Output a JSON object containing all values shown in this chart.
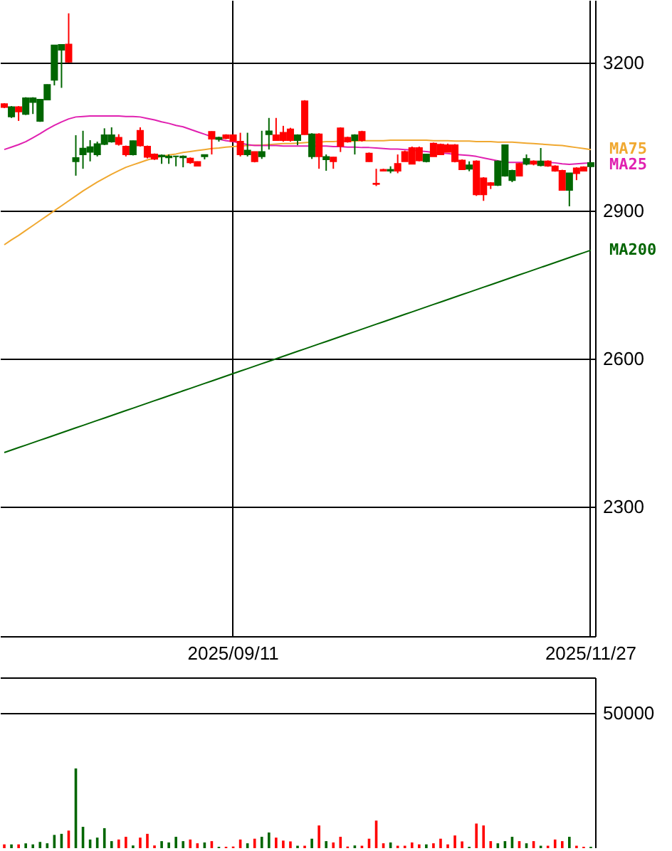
{
  "chart_data": [
    {
      "type": "candlestick",
      "categories": [
        null,
        null,
        null,
        null,
        null,
        null,
        null,
        null,
        null,
        null,
        null,
        null,
        null,
        null,
        null,
        null,
        null,
        null,
        null,
        null,
        null,
        null,
        null,
        null,
        null,
        null,
        null,
        null,
        null,
        null,
        null,
        null,
        "2025/09/11",
        null,
        null,
        null,
        null,
        null,
        null,
        null,
        null,
        null,
        null,
        null,
        null,
        null,
        null,
        null,
        null,
        null,
        null,
        null,
        null,
        null,
        null,
        null,
        null,
        null,
        null,
        null,
        null,
        null,
        null,
        null,
        null,
        null,
        null,
        null,
        null,
        null,
        null,
        null,
        null,
        null,
        null,
        null,
        null,
        null,
        null,
        null,
        null,
        null,
        "2025/11/27"
      ],
      "ohlc": [
        [
          3116,
          3118,
          3108,
          3110
        ],
        [
          3091,
          3112,
          3088,
          3110
        ],
        [
          3110,
          3112,
          3082,
          3101
        ],
        [
          3096,
          3130,
          3094,
          3128
        ],
        [
          3120,
          3130,
          3096,
          3128
        ],
        [
          3082,
          3126,
          3080,
          3125
        ],
        [
          3125,
          3156,
          3124,
          3155
        ],
        [
          3165,
          3236,
          3154,
          3235
        ],
        [
          3226,
          3237,
          3149,
          3236
        ],
        [
          3237,
          3300,
          3200,
          3202
        ],
        [
          3000,
          3053,
          2971,
          3007
        ],
        [
          3014,
          3062,
          2985,
          3026
        ],
        [
          3019,
          3043,
          3000,
          3029
        ],
        [
          3014,
          3040,
          3010,
          3035
        ],
        [
          3035,
          3067,
          3033,
          3053
        ],
        [
          3040,
          3069,
          3038,
          3053
        ],
        [
          3048,
          3055,
          3032,
          3035
        ],
        [
          3030,
          3032,
          3010,
          3014
        ],
        [
          3014,
          3042,
          3012,
          3041
        ],
        [
          3062,
          3069,
          3030,
          3032
        ],
        [
          3030,
          3032,
          3006,
          3009
        ],
        [
          3014,
          3016,
          3003,
          3005
        ],
        [
          3010,
          3014,
          2995,
          3012
        ],
        [
          3008,
          3014,
          2995,
          3010
        ],
        [
          3010,
          3010,
          2990,
          3010
        ],
        [
          3008,
          3012,
          2988,
          3010
        ],
        [
          3006,
          3008,
          2995,
          2998
        ],
        [
          2999,
          3000,
          2990,
          2991
        ],
        [
          3010,
          3014,
          3004,
          3013
        ],
        [
          3060,
          3061,
          3014,
          3046
        ],
        [
          3045,
          3050,
          3040,
          3048
        ],
        [
          3053,
          3055,
          3045,
          3047
        ],
        [
          3053,
          3055,
          3040,
          3041
        ],
        [
          3040,
          3058,
          3010,
          3014
        ],
        [
          3014,
          3058,
          3010,
          3022
        ],
        [
          3019,
          3020,
          2998,
          3000
        ],
        [
          3010,
          3062,
          3005,
          3019
        ],
        [
          3055,
          3088,
          3024,
          3061
        ],
        [
          3053,
          3088,
          3043,
          3043
        ],
        [
          3058,
          3072,
          3040,
          3043
        ],
        [
          3065,
          3068,
          3040,
          3043
        ],
        [
          3043,
          3055,
          3033,
          3053
        ],
        [
          3122,
          3124,
          3054,
          3055
        ],
        [
          3010,
          3057,
          3005,
          3055
        ],
        [
          3055,
          3057,
          2985,
          3010
        ],
        [
          3004,
          3014,
          2981,
          3009
        ],
        [
          3008,
          3009,
          2985,
          3000
        ],
        [
          3067,
          3069,
          3019,
          3031
        ],
        [
          3048,
          3050,
          3038,
          3040
        ],
        [
          3043,
          3055,
          3014,
          3053
        ],
        [
          3060,
          3062,
          3040,
          3043
        ],
        [
          3016,
          3018,
          2999,
          3000
        ],
        [
          2955,
          2985,
          2950,
          2954
        ],
        [
          2983,
          2985,
          2980,
          2981
        ],
        [
          2981,
          2990,
          2976,
          2983
        ],
        [
          2995,
          3014,
          2976,
          2981
        ],
        [
          3019,
          3022,
          3000,
          3000
        ],
        [
          3027,
          3030,
          2995,
          2995
        ],
        [
          3027,
          3030,
          3000,
          3002
        ],
        [
          3000,
          3015,
          2998,
          3014
        ],
        [
          3036,
          3038,
          3010,
          3010
        ],
        [
          3034,
          3036,
          3014,
          3014
        ],
        [
          3033,
          3036,
          3019,
          3019
        ],
        [
          3033,
          3035,
          2998,
          3000
        ],
        [
          3002,
          3004,
          2983,
          2984
        ],
        [
          2985,
          3000,
          2980,
          2992
        ],
        [
          3000,
          3002,
          2930,
          2933
        ],
        [
          2966,
          2968,
          2920,
          2933
        ],
        [
          2956,
          2958,
          2944,
          2952
        ],
        [
          2952,
          3002,
          2950,
          3000
        ],
        [
          2971,
          3034,
          2969,
          3033
        ],
        [
          2962,
          2983,
          2958,
          2981
        ],
        [
          2995,
          2997,
          2971,
          2971
        ],
        [
          2995,
          3014,
          2992,
          3005
        ],
        [
          3000,
          3002,
          2992,
          2995
        ],
        [
          2992,
          3027,
          2990,
          3000
        ],
        [
          3000,
          3002,
          2989,
          2991
        ],
        [
          2990,
          2992,
          2979,
          2981
        ],
        [
          2981,
          2983,
          2942,
          2942
        ],
        [
          2942,
          2976,
          2909,
          2976
        ],
        [
          2986,
          2988,
          2962,
          2976
        ],
        [
          2988,
          2990,
          2980,
          2981
        ],
        [
          2990,
          2997,
          2988,
          2997
        ]
      ],
      "colors": [
        "#ff0000",
        "#006600",
        "#ff0000",
        "#006600",
        "#006600",
        "#006600",
        "#006600",
        "#006600",
        "#006600",
        "#ff0000",
        "#006600",
        "#006600",
        "#006600",
        "#006600",
        "#006600",
        "#006600",
        "#ff0000",
        "#ff0000",
        "#006600",
        "#ff0000",
        "#ff0000",
        "#ff0000",
        "#006600",
        "#006600",
        "#006600",
        "#006600",
        "#ff0000",
        "#ff0000",
        "#006600",
        "#ff0000",
        "#006600",
        "#ff0000",
        "#ff0000",
        "#ff0000",
        "#006600",
        "#ff0000",
        "#006600",
        "#006600",
        "#ff0000",
        "#ff0000",
        "#ff0000",
        "#006600",
        "#ff0000",
        "#006600",
        "#ff0000",
        "#006600",
        "#ff0000",
        "#ff0000",
        "#ff0000",
        "#006600",
        "#ff0000",
        "#ff0000",
        "#ff0000",
        "#ff0000",
        "#006600",
        "#ff0000",
        "#ff0000",
        "#ff0000",
        "#ff0000",
        "#006600",
        "#ff0000",
        "#ff0000",
        "#ff0000",
        "#ff0000",
        "#ff0000",
        "#006600",
        "#ff0000",
        "#ff0000",
        "#ff0000",
        "#006600",
        "#006600",
        "#006600",
        "#ff0000",
        "#006600",
        "#ff0000",
        "#006600",
        "#ff0000",
        "#ff0000",
        "#ff0000",
        "#006600",
        "#ff0000",
        "#ff0000",
        "#006600"
      ],
      "series": [
        {
          "name": "MA75",
          "type": "line",
          "color": "#f0a830",
          "values": [
            2831,
            2841,
            2850,
            2860,
            2870,
            2880,
            2890,
            2900,
            2910,
            2920,
            2930,
            2940,
            2949,
            2958,
            2966,
            2974,
            2981,
            2988,
            2993,
            2998,
            3003,
            3007,
            3010,
            3013,
            3015,
            3018,
            3020,
            3022,
            3024,
            3026,
            3027,
            3029,
            3030,
            3031,
            3032,
            3033,
            3033,
            3034,
            3035,
            3036,
            3036,
            3037,
            3038,
            3039,
            3039,
            3040,
            3040,
            3041,
            3041,
            3041,
            3042,
            3042,
            3042,
            3042,
            3043,
            3043,
            3043,
            3043,
            3043,
            3043,
            3042,
            3042,
            3042,
            3041,
            3041,
            3041,
            3040,
            3040,
            3040,
            3039,
            3039,
            3039,
            3038,
            3037,
            3036,
            3035,
            3034,
            3033,
            3032,
            3030,
            3028,
            3026,
            3024
          ]
        },
        {
          "name": "MA25",
          "type": "line",
          "color": "#e020b0",
          "values": [
            3024,
            3029,
            3034,
            3040,
            3048,
            3056,
            3065,
            3073,
            3080,
            3086,
            3090,
            3091,
            3092,
            3092,
            3092,
            3092,
            3092,
            3091,
            3091,
            3090,
            3087,
            3084,
            3080,
            3077,
            3073,
            3070,
            3065,
            3060,
            3055,
            3050,
            3045,
            3042,
            3040,
            3037,
            3034,
            3032,
            3032,
            3032,
            3032,
            3031,
            3031,
            3031,
            3031,
            3031,
            3031,
            3031,
            3030,
            3030,
            3029,
            3029,
            3028,
            3028,
            3027,
            3026,
            3025,
            3025,
            3024,
            3023,
            3021,
            3020,
            3018,
            3017,
            3016,
            3014,
            3013,
            3012,
            3010,
            3007,
            3004,
            3001,
            2998,
            2998,
            2998,
            2998,
            2998,
            2998,
            2998,
            2997,
            2995,
            2994,
            2995,
            2996,
            2997
          ]
        },
        {
          "name": "MA200",
          "type": "line",
          "color": "#006400",
          "values": [
            2410,
            2415,
            2420,
            2425,
            2430,
            2435,
            2440,
            2445,
            2450,
            2455,
            2460,
            2465,
            2470,
            2475,
            2480,
            2485,
            2490,
            2495,
            2500,
            2505,
            2510,
            2515,
            2520,
            2525,
            2530,
            2535,
            2540,
            2545,
            2550,
            2555,
            2560,
            2565,
            2570,
            2575,
            2580,
            2585,
            2590,
            2595,
            2600,
            2605,
            2610,
            2615,
            2620,
            2625,
            2630,
            2635,
            2640,
            2645,
            2650,
            2655,
            2660,
            2665,
            2670,
            2675,
            2680,
            2685,
            2690,
            2695,
            2700,
            2705,
            2710,
            2715,
            2720,
            2725,
            2730,
            2735,
            2740,
            2745,
            2750,
            2755,
            2760,
            2765,
            2770,
            2775,
            2780,
            2785,
            2790,
            2795,
            2800,
            2805,
            2810,
            2815,
            2820
          ]
        }
      ],
      "ylim": [
        2038,
        3327
      ],
      "yticks": [
        2300,
        2600,
        2900,
        3200
      ],
      "grid": true
    },
    {
      "type": "bar",
      "categories": [
        null,
        null,
        null,
        null,
        null,
        null,
        null,
        null,
        null,
        null,
        null,
        null,
        null,
        null,
        null,
        null,
        null,
        null,
        null,
        null,
        null,
        null,
        null,
        null,
        null,
        null,
        null,
        null,
        null,
        null,
        null,
        null,
        "2025/09/11",
        null,
        null,
        null,
        null,
        null,
        null,
        null,
        null,
        null,
        null,
        null,
        null,
        null,
        null,
        null,
        null,
        null,
        null,
        null,
        null,
        null,
        null,
        null,
        null,
        null,
        null,
        null,
        null,
        null,
        null,
        null,
        null,
        null,
        null,
        null,
        null,
        null,
        null,
        null,
        null,
        null,
        null,
        null,
        null,
        null,
        null,
        null,
        null,
        null,
        "2025/11/27"
      ],
      "values": [
        1400,
        1400,
        1400,
        1800,
        1400,
        2300,
        1800,
        4900,
        5300,
        6500,
        29500,
        7900,
        3200,
        3900,
        7400,
        2600,
        3200,
        4200,
        1000,
        3900,
        5300,
        1000,
        2600,
        2100,
        4200,
        2600,
        3200,
        1800,
        2100,
        2600,
        500,
        500,
        600,
        3200,
        1800,
        3500,
        4200,
        5800,
        3900,
        2800,
        2500,
        900,
        900,
        3500,
        8400,
        2600,
        2100,
        4200,
        600,
        1000,
        900,
        3500,
        10200,
        1800,
        2100,
        900,
        900,
        2100,
        1400,
        1400,
        1800,
        3500,
        1400,
        4700,
        2500,
        500,
        9100,
        8400,
        2600,
        1800,
        2600,
        4200,
        2600,
        1800,
        2600,
        900,
        900,
        3200,
        2600,
        4200,
        900,
        500,
        500
      ],
      "colors": [
        "#ff0000",
        "#006600",
        "#ff0000",
        "#006600",
        "#006600",
        "#006600",
        "#006600",
        "#006600",
        "#006600",
        "#ff0000",
        "#006600",
        "#006600",
        "#006600",
        "#006600",
        "#006600",
        "#006600",
        "#ff0000",
        "#ff0000",
        "#006600",
        "#ff0000",
        "#ff0000",
        "#ff0000",
        "#006600",
        "#006600",
        "#006600",
        "#006600",
        "#ff0000",
        "#ff0000",
        "#006600",
        "#ff0000",
        "#006600",
        "#ff0000",
        "#ff0000",
        "#ff0000",
        "#006600",
        "#ff0000",
        "#006600",
        "#006600",
        "#ff0000",
        "#ff0000",
        "#ff0000",
        "#006600",
        "#ff0000",
        "#006600",
        "#ff0000",
        "#006600",
        "#ff0000",
        "#ff0000",
        "#ff0000",
        "#006600",
        "#ff0000",
        "#ff0000",
        "#ff0000",
        "#ff0000",
        "#006600",
        "#ff0000",
        "#ff0000",
        "#ff0000",
        "#ff0000",
        "#006600",
        "#ff0000",
        "#ff0000",
        "#ff0000",
        "#ff0000",
        "#ff0000",
        "#006600",
        "#ff0000",
        "#ff0000",
        "#ff0000",
        "#006600",
        "#006600",
        "#006600",
        "#ff0000",
        "#006600",
        "#ff0000",
        "#006600",
        "#ff0000",
        "#ff0000",
        "#ff0000",
        "#006600",
        "#ff0000",
        "#ff0000",
        "#006600"
      ],
      "ylim": [
        0,
        63200
      ],
      "yticks": [
        50000
      ],
      "grid": "y",
      "tick_labels": "y"
    }
  ]
}
